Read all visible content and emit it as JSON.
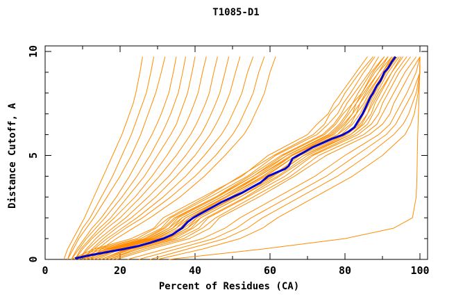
{
  "chart_data": {
    "type": "line",
    "title": "T1085-D1",
    "xlabel": "Percent of Residues (CA)",
    "ylabel": "Distance Cutoff, A",
    "xlim": [
      0,
      100
    ],
    "ylim": [
      0,
      10
    ],
    "x_major_ticks": [
      0,
      20,
      40,
      60,
      80,
      100
    ],
    "x_minor_ticks": [
      10,
      30,
      50,
      70,
      90
    ],
    "y_major_ticks": [
      0,
      5,
      10
    ],
    "y_minor_ticks": [
      1,
      2,
      3,
      4,
      6,
      7,
      8,
      9
    ],
    "grid": false,
    "legend": "none",
    "colors": {
      "models": "#ff8c00",
      "highlight": "#0000cd",
      "frame": "#000000",
      "background": "#ffffff"
    },
    "cutoffs": [
      0,
      0.5,
      1,
      1.5,
      2,
      3,
      4,
      5,
      6,
      6.5,
      7,
      7.5,
      8,
      9,
      9.75
    ],
    "model_series": [
      {
        "name": "model-01",
        "x": [
          5,
          6,
          7.5,
          9,
          10.5,
          13,
          15.5,
          18,
          20.5,
          21.5,
          22.5,
          23.5,
          24.2,
          25.3,
          26
        ]
      },
      {
        "name": "model-02",
        "x": [
          6,
          7,
          8.5,
          10,
          12,
          15,
          18,
          20.5,
          23,
          24,
          25,
          26,
          27,
          28.2,
          29
        ]
      },
      {
        "name": "model-03",
        "x": [
          6,
          7.5,
          9,
          11,
          13,
          16.5,
          20,
          23,
          25.5,
          26.5,
          27.5,
          28.5,
          29.5,
          31,
          32
        ]
      },
      {
        "name": "model-04",
        "x": [
          7,
          8.5,
          10.5,
          12.5,
          15,
          19,
          22.5,
          25.5,
          28.5,
          29.8,
          31,
          32,
          33,
          34.2,
          35
        ]
      },
      {
        "name": "model-05",
        "x": [
          7,
          9,
          11,
          13.5,
          16,
          20.5,
          24.5,
          28,
          31,
          32.3,
          33.5,
          34.5,
          35.5,
          36.7,
          37.5
        ]
      },
      {
        "name": "model-06",
        "x": [
          8,
          9.5,
          12,
          14.5,
          17.5,
          22,
          26.5,
          30,
          33.5,
          35,
          36,
          37,
          38,
          39.2,
          40
        ]
      },
      {
        "name": "model-07",
        "x": [
          8,
          10,
          12.5,
          15.5,
          18.5,
          24,
          28.5,
          32.5,
          36,
          37.5,
          38.7,
          39.8,
          40.8,
          42,
          43
        ]
      },
      {
        "name": "model-08",
        "x": [
          9,
          11,
          13.5,
          16.5,
          20,
          25.5,
          30.5,
          35,
          38.8,
          40.3,
          41.6,
          42.8,
          43.8,
          45,
          46
        ]
      },
      {
        "name": "model-09",
        "x": [
          9,
          11.5,
          14.5,
          18,
          21.5,
          27.5,
          33,
          37.5,
          41.5,
          43,
          44.3,
          45.5,
          46.6,
          48,
          49
        ]
      },
      {
        "name": "model-10",
        "x": [
          10,
          12.5,
          15.5,
          19,
          23,
          29.5,
          35,
          40,
          44,
          45.6,
          47,
          48.2,
          49.3,
          50.8,
          52
        ]
      },
      {
        "name": "model-11",
        "x": [
          10,
          13,
          16.5,
          20.5,
          24.5,
          31.5,
          37.5,
          42.5,
          47,
          48.7,
          50,
          51.3,
          52.5,
          54,
          55.5
        ]
      },
      {
        "name": "model-12",
        "x": [
          11,
          14,
          17.5,
          21.5,
          26,
          33.5,
          40,
          45.5,
          50,
          51.7,
          53,
          54.3,
          55.5,
          57,
          58.5
        ]
      },
      {
        "name": "model-13",
        "x": [
          12,
          15,
          19,
          23.5,
          28,
          36,
          42.5,
          48,
          53,
          54.7,
          56,
          57.3,
          58.5,
          60,
          61.5
        ]
      },
      {
        "name": "model-14",
        "x": [
          7,
          13,
          23,
          29,
          31.5,
          42,
          52.5,
          59.5,
          70,
          72.5,
          75.5,
          77,
          79,
          83,
          86
        ]
      },
      {
        "name": "model-15",
        "x": [
          8,
          14,
          24.5,
          29.5,
          33,
          43,
          52,
          61,
          71.5,
          74.5,
          76,
          78.5,
          80,
          84,
          87.5
        ]
      },
      {
        "name": "model-16",
        "x": [
          9,
          15,
          25.5,
          31,
          33.5,
          44,
          54,
          61.5,
          72.5,
          75.5,
          78,
          79.5,
          81.5,
          85,
          88
        ]
      },
      {
        "name": "model-17",
        "x": [
          10,
          16,
          26.5,
          31.5,
          34.5,
          45.5,
          54.5,
          63,
          74,
          77,
          79,
          80.5,
          82.5,
          86.5,
          89
        ]
      },
      {
        "name": "model-18",
        "x": [
          10,
          16.5,
          27,
          32,
          35,
          45.5,
          55.5,
          63.5,
          74.5,
          77.5,
          79.5,
          82,
          83.5,
          87,
          90.5
        ]
      },
      {
        "name": "model-19",
        "x": [
          11,
          17,
          27.5,
          33,
          35.5,
          46,
          55.5,
          64.5,
          75.5,
          78.5,
          80.5,
          82,
          84.5,
          87.5,
          90.5
        ]
      },
      {
        "name": "model-20",
        "x": [
          11,
          17.5,
          28,
          33,
          36.5,
          47,
          56.5,
          64.5,
          76,
          79,
          81,
          83,
          84.5,
          88,
          91.5
        ]
      },
      {
        "name": "model-21",
        "x": [
          12,
          18,
          28.5,
          34,
          36.5,
          47,
          57,
          65.5,
          76.5,
          79.5,
          82,
          83,
          85,
          89,
          91.5
        ]
      },
      {
        "name": "model-22",
        "x": [
          12,
          18.5,
          29,
          34,
          37.5,
          48,
          57,
          66,
          77,
          80,
          82,
          84,
          85.5,
          89,
          92.5
        ]
      },
      {
        "name": "model-23",
        "x": [
          13,
          19,
          29.5,
          35,
          37.5,
          48.5,
          58,
          66,
          78,
          80.5,
          83,
          84,
          86,
          90,
          92.5
        ]
      },
      {
        "name": "model-24",
        "x": [
          13,
          19.5,
          30,
          35,
          38.5,
          48.5,
          58.5,
          67,
          78,
          81.5,
          83,
          85,
          86.5,
          90,
          93
        ]
      },
      {
        "name": "model-25",
        "x": [
          14,
          20,
          30.5,
          36,
          38.5,
          49.5,
          59,
          67,
          79,
          82,
          84,
          85.5,
          87,
          90.5,
          93
        ]
      },
      {
        "name": "model-26",
        "x": [
          15,
          21.5,
          32,
          37,
          40.5,
          50.5,
          60.5,
          68,
          80,
          83.5,
          85,
          86.5,
          88,
          91,
          94
        ]
      },
      {
        "name": "model-27",
        "x": [
          15,
          22,
          32.5,
          38,
          40.5,
          51,
          60.5,
          69,
          80.5,
          84,
          86,
          87,
          88.5,
          91.5,
          94.5
        ]
      },
      {
        "name": "model-28",
        "x": [
          16,
          22.5,
          33,
          38,
          41.5,
          52,
          61,
          69,
          81.5,
          84.5,
          86,
          87.5,
          89,
          92.5,
          95
        ]
      },
      {
        "name": "model-29",
        "x": [
          16,
          23,
          33.5,
          39,
          41.5,
          52,
          62,
          70,
          81.5,
          85,
          87,
          88,
          89.5,
          92.5,
          95.5
        ]
      },
      {
        "name": "model-30",
        "x": [
          17,
          24,
          34.5,
          39.5,
          43,
          53.5,
          62.5,
          71,
          82.5,
          86,
          87.5,
          89,
          90.5,
          93.5,
          96.5
        ]
      },
      {
        "name": "model-31",
        "x": [
          17,
          25,
          35.5,
          41,
          43.5,
          54,
          64,
          71.5,
          83.5,
          87,
          89,
          90,
          91.5,
          94.5,
          97.5
        ]
      },
      {
        "name": "model-32",
        "x": [
          18,
          26.5,
          37,
          42,
          45.5,
          55.5,
          65.5,
          73,
          85,
          88.5,
          90,
          91.5,
          93,
          96,
          99
        ]
      },
      {
        "name": "model-33",
        "x": [
          19,
          28,
          38.5,
          44,
          46.5,
          57,
          66.5,
          75,
          86.5,
          90,
          92,
          93,
          94.5,
          97.5,
          100
        ]
      },
      {
        "name": "model-34",
        "x": [
          22,
          32,
          42,
          48,
          52,
          62,
          72,
          80,
          89,
          92,
          93.5,
          95,
          96.5,
          99,
          100
        ]
      },
      {
        "name": "model-35",
        "x": [
          25,
          35,
          45,
          51,
          55,
          65,
          75,
          83,
          91,
          93.5,
          95,
          96.5,
          98,
          100,
          100
        ]
      },
      {
        "name": "model-36",
        "x": [
          28,
          38,
          48,
          54,
          58,
          68,
          78,
          86,
          93,
          95.5,
          97,
          98,
          99,
          100,
          100
        ]
      },
      {
        "name": "model-37",
        "x": [
          30,
          42,
          52,
          58,
          62,
          72,
          82,
          90,
          96,
          97.5,
          98.5,
          99,
          99.5,
          100,
          100
        ]
      },
      {
        "name": "model-38",
        "x": [
          33,
          58,
          80,
          93,
          98,
          99,
          99.2,
          99.3,
          99.4,
          99.5,
          99.6,
          99.7,
          99.8,
          99.9,
          100
        ]
      }
    ],
    "highlight_series": {
      "name": "best-model",
      "points": [
        [
          8,
          0.05
        ],
        [
          12,
          0.2
        ],
        [
          15,
          0.3
        ],
        [
          18,
          0.4
        ],
        [
          21,
          0.5
        ],
        [
          25,
          0.65
        ],
        [
          28,
          0.8
        ],
        [
          31.5,
          1.0
        ],
        [
          34,
          1.2
        ],
        [
          36.5,
          1.5
        ],
        [
          38,
          1.8
        ],
        [
          39.5,
          2.0
        ],
        [
          42,
          2.25
        ],
        [
          44.5,
          2.5
        ],
        [
          47,
          2.75
        ],
        [
          50,
          3.0
        ],
        [
          52.5,
          3.2
        ],
        [
          55,
          3.45
        ],
        [
          57.5,
          3.7
        ],
        [
          59.5,
          4.0
        ],
        [
          62,
          4.2
        ],
        [
          64,
          4.35
        ],
        [
          65,
          4.5
        ],
        [
          66,
          4.85
        ],
        [
          67.5,
          5.0
        ],
        [
          69.5,
          5.2
        ],
        [
          71.5,
          5.4
        ],
        [
          74,
          5.6
        ],
        [
          76.5,
          5.8
        ],
        [
          79.5,
          6.0
        ],
        [
          81,
          6.15
        ],
        [
          82.5,
          6.35
        ],
        [
          83,
          6.5
        ],
        [
          84,
          6.8
        ],
        [
          84.7,
          7.0
        ],
        [
          85.5,
          7.3
        ],
        [
          86,
          7.5
        ],
        [
          86.8,
          7.8
        ],
        [
          87.5,
          8.0
        ],
        [
          88.5,
          8.35
        ],
        [
          89.5,
          8.6
        ],
        [
          90.5,
          9.0
        ],
        [
          91.5,
          9.2
        ],
        [
          92.5,
          9.5
        ],
        [
          93.5,
          9.75
        ]
      ]
    }
  }
}
